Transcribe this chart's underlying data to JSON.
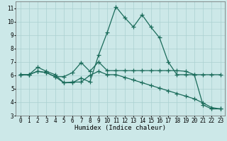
{
  "bg_color": "#cce8e8",
  "grid_color": "#aad0d0",
  "line_color": "#1a6b5a",
  "line_width": 0.9,
  "marker": "+",
  "marker_size": 4,
  "marker_edge_width": 0.9,
  "xlabel": "Humidex (Indice chaleur)",
  "xlabel_fontsize": 6.5,
  "tick_fontsize": 5.5,
  "xlim": [
    -0.5,
    23.5
  ],
  "ylim": [
    3,
    11.5
  ],
  "yticks": [
    3,
    4,
    5,
    6,
    7,
    8,
    9,
    10,
    11
  ],
  "xticks": [
    0,
    1,
    2,
    3,
    4,
    5,
    6,
    7,
    8,
    9,
    10,
    11,
    12,
    13,
    14,
    15,
    16,
    17,
    18,
    19,
    20,
    21,
    22,
    23
  ],
  "series": [
    {
      "x": [
        0,
        1,
        2,
        3,
        4,
        5,
        6,
        7,
        8,
        9,
        10,
        11,
        12,
        13,
        14,
        15,
        16,
        17,
        18,
        19,
        20,
        21,
        22,
        23
      ],
      "y": [
        6.05,
        6.05,
        6.6,
        6.3,
        6.05,
        5.45,
        5.45,
        5.8,
        5.5,
        7.5,
        9.2,
        11.1,
        10.3,
        9.6,
        10.5,
        9.6,
        8.8,
        7.0,
        6.05,
        6.05,
        6.05,
        3.8,
        3.5,
        3.5
      ]
    },
    {
      "x": [
        0,
        1,
        2,
        3,
        4,
        5,
        6,
        7,
        8,
        9,
        10,
        11,
        12,
        13,
        14,
        15,
        16,
        17,
        18,
        19,
        20,
        21,
        22,
        23
      ],
      "y": [
        6.05,
        6.05,
        6.3,
        6.2,
        5.9,
        5.9,
        6.2,
        6.95,
        6.3,
        7.0,
        6.35,
        6.35,
        6.35,
        6.35,
        6.35,
        6.35,
        6.35,
        6.35,
        6.35,
        6.3,
        6.05,
        6.05,
        6.05,
        6.05
      ]
    },
    {
      "x": [
        0,
        1,
        2,
        3,
        4,
        5,
        6,
        7,
        8,
        9,
        10,
        11,
        12,
        13,
        14,
        15,
        16,
        17,
        18,
        19,
        20,
        21,
        22,
        23
      ],
      "y": [
        6.05,
        6.05,
        6.3,
        6.2,
        5.9,
        5.45,
        5.5,
        5.5,
        6.0,
        6.3,
        6.05,
        6.05,
        5.85,
        5.65,
        5.45,
        5.25,
        5.05,
        4.85,
        4.65,
        4.45,
        4.25,
        3.95,
        3.6,
        3.5
      ]
    }
  ]
}
